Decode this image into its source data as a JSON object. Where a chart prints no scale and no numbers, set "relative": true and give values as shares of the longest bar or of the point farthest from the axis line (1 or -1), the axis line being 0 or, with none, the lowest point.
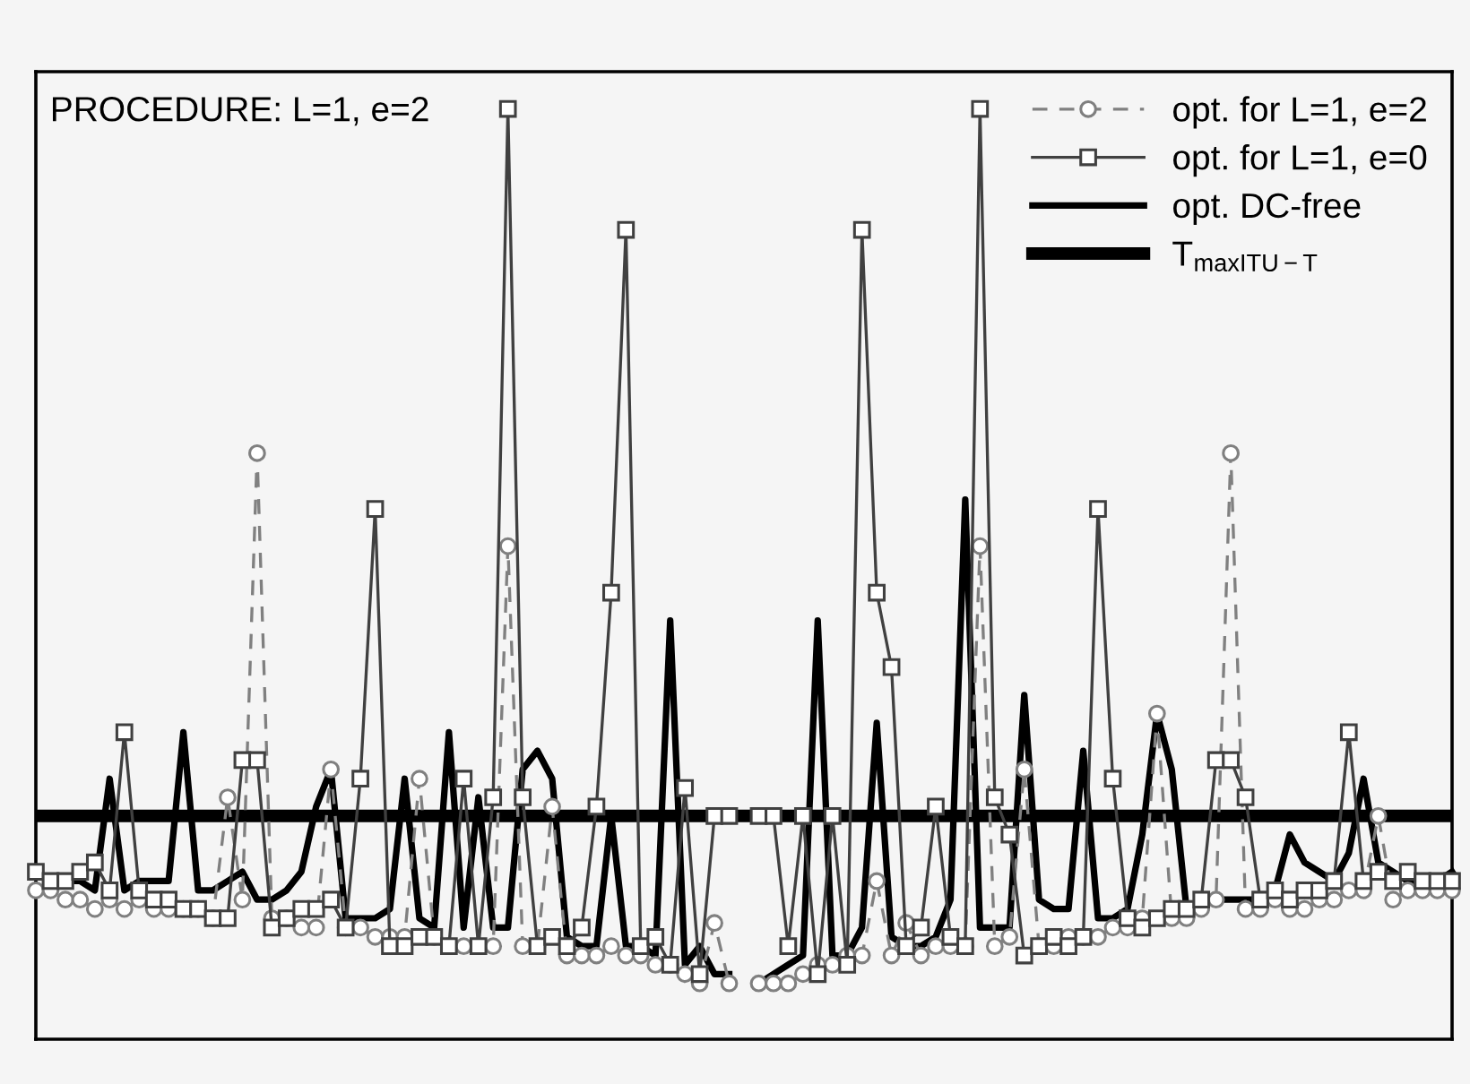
{
  "chart_data": {
    "type": "line",
    "relative": true,
    "grid": false,
    "legend": "top right",
    "annotations": [
      "PROCEDURE: L=1, e=2"
    ],
    "categories": [
      null,
      null,
      null,
      null,
      null,
      null,
      null,
      null,
      null,
      null,
      null,
      null,
      null,
      null,
      null,
      null,
      null,
      null,
      null,
      null,
      null,
      null,
      null,
      null,
      null,
      null,
      null,
      null,
      null,
      null,
      null,
      null,
      null,
      null,
      null,
      null,
      null,
      null,
      null,
      null,
      null,
      null,
      null,
      null,
      null,
      null,
      null,
      null,
      null,
      null,
      null,
      null,
      null,
      null,
      null,
      null,
      null,
      null,
      null,
      null,
      null,
      null,
      null,
      null,
      null,
      null,
      null,
      null,
      null,
      null,
      null,
      null,
      null,
      null,
      null,
      null,
      null,
      null,
      null,
      null,
      null,
      null,
      null,
      null,
      null,
      null,
      null,
      null,
      null,
      null,
      null,
      null,
      null,
      null,
      null,
      null,
      null
    ],
    "series": [
      {
        "name": "opt. for L=1, e=2",
        "color": "#808080",
        "marker": "circle",
        "line_style": "dashed",
        "values": [
          0.16,
          0.16,
          0.15,
          0.15,
          0.14,
          0.15,
          0.14,
          0.15,
          0.14,
          0.14,
          0.14,
          0.14,
          0.13,
          0.26,
          0.15,
          0.63,
          0.13,
          0.13,
          0.12,
          0.12,
          0.29,
          0.12,
          0.12,
          0.11,
          0.11,
          0.11,
          0.28,
          0.11,
          0.1,
          0.1,
          0.1,
          0.1,
          0.53,
          0.1,
          0.1,
          0.25,
          0.09,
          0.09,
          0.09,
          0.1,
          0.09,
          0.09,
          0.08,
          0.08,
          0.07,
          0.06,
          0.125,
          0.06,
          null,
          0.06,
          0.06,
          0.06,
          0.07,
          0.08,
          0.08,
          0.09,
          0.09,
          0.17,
          0.09,
          0.125,
          0.09,
          0.1,
          0.1,
          0.1,
          0.53,
          0.1,
          0.11,
          0.29,
          0.1,
          0.1,
          0.11,
          0.11,
          0.11,
          0.12,
          0.12,
          0.13,
          0.35,
          0.13,
          0.13,
          0.14,
          0.15,
          0.63,
          0.14,
          0.14,
          0.15,
          0.14,
          0.14,
          0.15,
          0.15,
          0.16,
          0.16,
          0.24,
          0.15,
          0.16,
          0.16,
          0.16,
          0.16
        ]
      },
      {
        "name": "opt. for L=1, e=0",
        "color": "#404040",
        "marker": "square",
        "line_style": "solid",
        "values": [
          0.18,
          0.17,
          0.17,
          0.18,
          0.19,
          0.16,
          0.33,
          0.16,
          0.15,
          0.15,
          0.14,
          0.14,
          0.13,
          0.13,
          0.3,
          0.3,
          0.12,
          0.13,
          0.14,
          0.14,
          0.15,
          0.12,
          0.28,
          0.57,
          0.1,
          0.1,
          0.11,
          0.11,
          0.1,
          0.28,
          0.1,
          0.26,
          1.0,
          0.26,
          0.1,
          0.11,
          0.1,
          0.12,
          0.25,
          0.48,
          0.87,
          0.1,
          0.11,
          0.08,
          0.27,
          0.07,
          0.24,
          0.24,
          null,
          0.24,
          0.24,
          0.1,
          0.24,
          0.07,
          0.24,
          0.08,
          0.87,
          0.48,
          0.4,
          0.1,
          0.12,
          0.25,
          0.11,
          0.1,
          1.0,
          0.26,
          0.22,
          0.09,
          0.1,
          0.11,
          0.1,
          0.11,
          0.57,
          0.28,
          0.13,
          0.12,
          0.13,
          0.14,
          0.14,
          0.15,
          0.3,
          0.3,
          0.26,
          0.15,
          0.16,
          0.15,
          0.16,
          0.16,
          0.17,
          0.33,
          0.17,
          0.18,
          0.17,
          0.18,
          0.17,
          0.17,
          0.17
        ]
      },
      {
        "name": "opt. DC-free",
        "color": "#000000",
        "marker": "none",
        "line_style": "solid",
        "values": [
          0.18,
          0.17,
          0.17,
          0.17,
          0.16,
          0.28,
          0.16,
          0.17,
          0.17,
          0.17,
          0.33,
          0.16,
          0.16,
          0.17,
          0.18,
          0.15,
          0.15,
          0.16,
          0.18,
          0.25,
          0.29,
          0.13,
          0.13,
          0.13,
          0.14,
          0.28,
          0.13,
          0.12,
          0.33,
          0.12,
          0.26,
          0.12,
          0.12,
          0.29,
          0.31,
          0.28,
          0.11,
          0.1,
          0.1,
          0.24,
          0.1,
          0.1,
          0.09,
          0.45,
          0.08,
          0.1,
          0.07,
          0.07,
          null,
          0.06,
          0.07,
          0.08,
          0.09,
          0.45,
          0.09,
          0.09,
          0.12,
          0.34,
          0.11,
          0.1,
          0.1,
          0.11,
          0.15,
          0.58,
          0.12,
          0.12,
          0.12,
          0.37,
          0.15,
          0.14,
          0.14,
          0.31,
          0.13,
          0.13,
          0.14,
          0.22,
          0.35,
          0.29,
          0.14,
          0.15,
          0.15,
          0.15,
          0.15,
          0.15,
          0.16,
          0.22,
          0.19,
          0.18,
          0.17,
          0.2,
          0.28,
          0.19,
          0.18,
          0.17,
          0.17,
          0.17,
          0.18
        ]
      }
    ],
    "ref_lines": [
      {
        "axis": "y",
        "value": 0.24,
        "label": "T$_{maxITU−T}$",
        "color": "#000000"
      }
    ]
  }
}
